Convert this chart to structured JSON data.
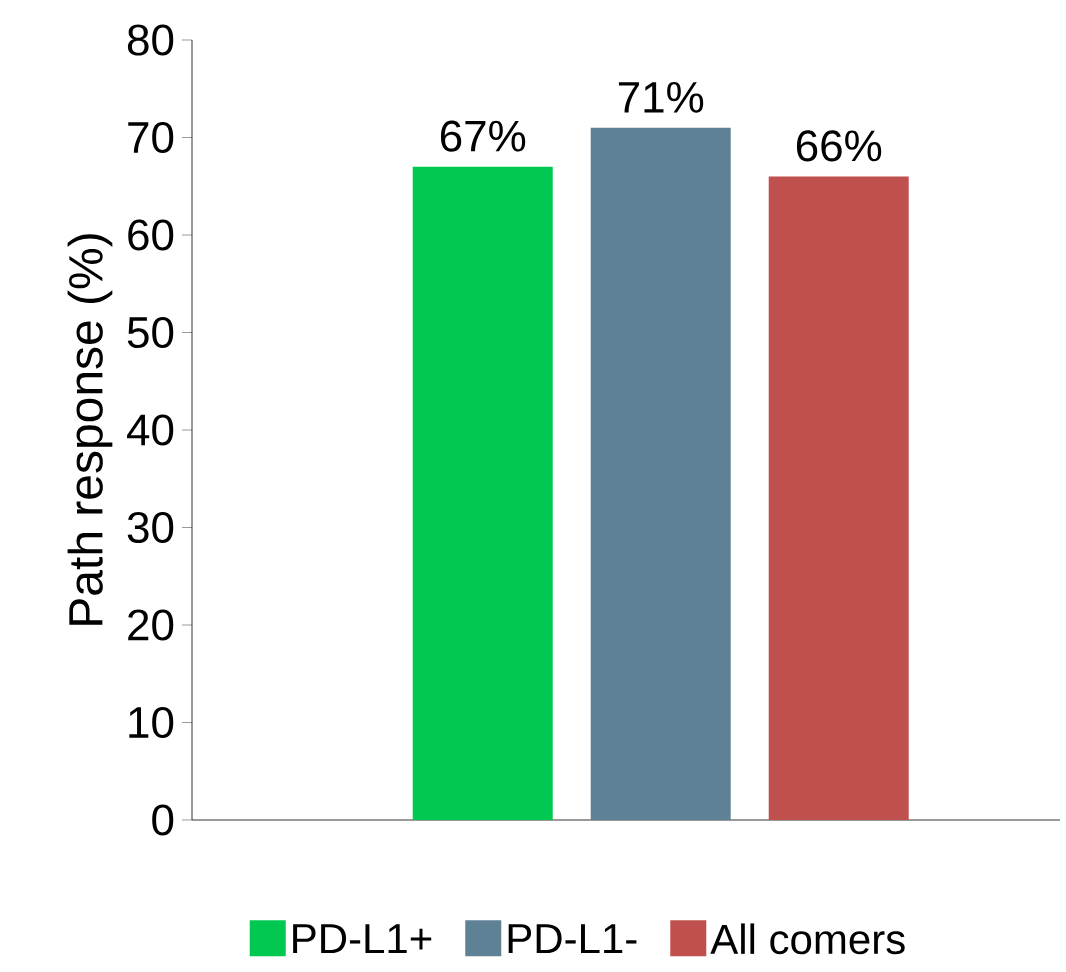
{
  "chart_data": {
    "type": "bar",
    "ylabel": "Path response (%)",
    "categories": [
      null
    ],
    "series": [
      {
        "name": "PD-L1+",
        "color": "#00c850",
        "values": [
          67
        ],
        "value_labels": [
          "67%"
        ]
      },
      {
        "name": "PD-L1-",
        "color": "#5f8196",
        "values": [
          71
        ],
        "value_labels": [
          "71%"
        ]
      },
      {
        "name": "All comers",
        "color": "#c0504d",
        "values": [
          66
        ],
        "value_labels": [
          "66%"
        ]
      }
    ],
    "ylim": [
      0,
      80
    ],
    "yticks": [
      0,
      10,
      20,
      30,
      40,
      50,
      60,
      70,
      80
    ],
    "legend": "bottom"
  }
}
